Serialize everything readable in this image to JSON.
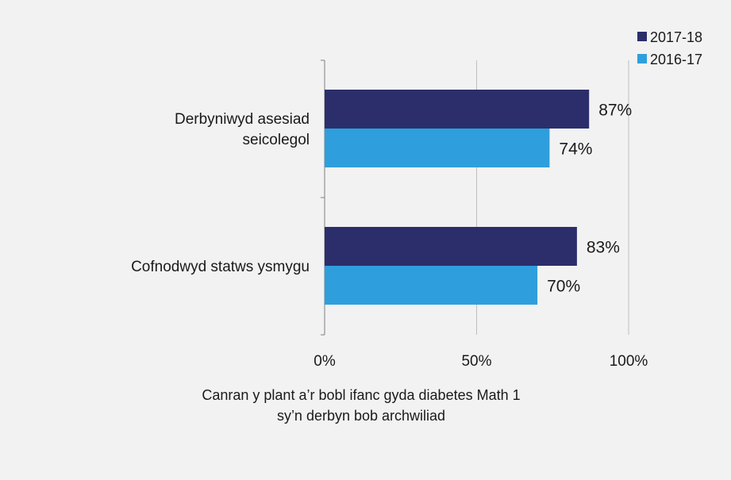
{
  "chart_data": {
    "type": "bar",
    "orientation": "horizontal",
    "categories": [
      "Derbyniwyd asesiad seicolegol",
      "Cofnodwyd statws ysmygu"
    ],
    "category_label_lines": [
      [
        "Derbyniwyd asesiad",
        "seicolegol"
      ],
      [
        "Cofnodwyd statws ysmygu"
      ]
    ],
    "series": [
      {
        "name": "2017-18",
        "values": [
          87,
          83
        ],
        "labels": [
          "87%",
          "83%"
        ],
        "color": "#2b2e6b"
      },
      {
        "name": "2016-17",
        "values": [
          74,
          70
        ],
        "labels": [
          "74%",
          "70%"
        ],
        "color": "#2e9fdc"
      }
    ],
    "xlabel_lines": [
      "Canran y plant a’r bobl ifanc gyda diabetes Math 1",
      "sy’n derbyn bob archwiliad"
    ],
    "xlim": [
      0,
      100
    ],
    "xticks": [
      0,
      50,
      100
    ],
    "xtick_labels": [
      "0%",
      "50%",
      "100%"
    ],
    "grid": true,
    "legend_position": "top-right",
    "gridline_color": "#bfbfbf",
    "background": "#f2f2f2"
  }
}
